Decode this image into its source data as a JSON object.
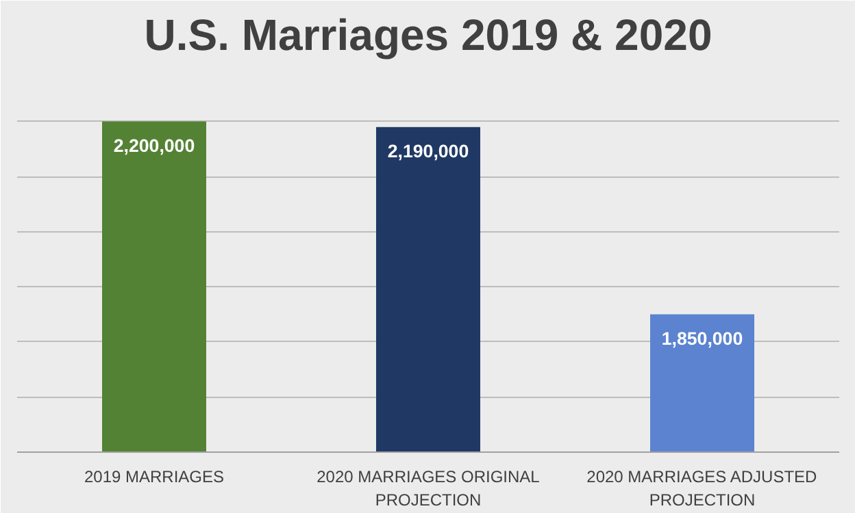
{
  "chart_data": {
    "type": "bar",
    "title": "U.S. Marriages 2019 & 2020",
    "categories": [
      "2019 MARRIAGES",
      "2020 MARRIAGES ORIGINAL PROJECTION",
      "2020 MARRIAGES ADJUSTED PROJECTION"
    ],
    "values": [
      2200000,
      2190000,
      1850000
    ],
    "value_labels": [
      "2,200,000",
      "2,190,000",
      "1,850,000"
    ],
    "colors": [
      "#548235",
      "#203864",
      "#5b83d0"
    ],
    "ylim": [
      1600000,
      2300000
    ],
    "tick_labels": "x",
    "grid": "y"
  }
}
